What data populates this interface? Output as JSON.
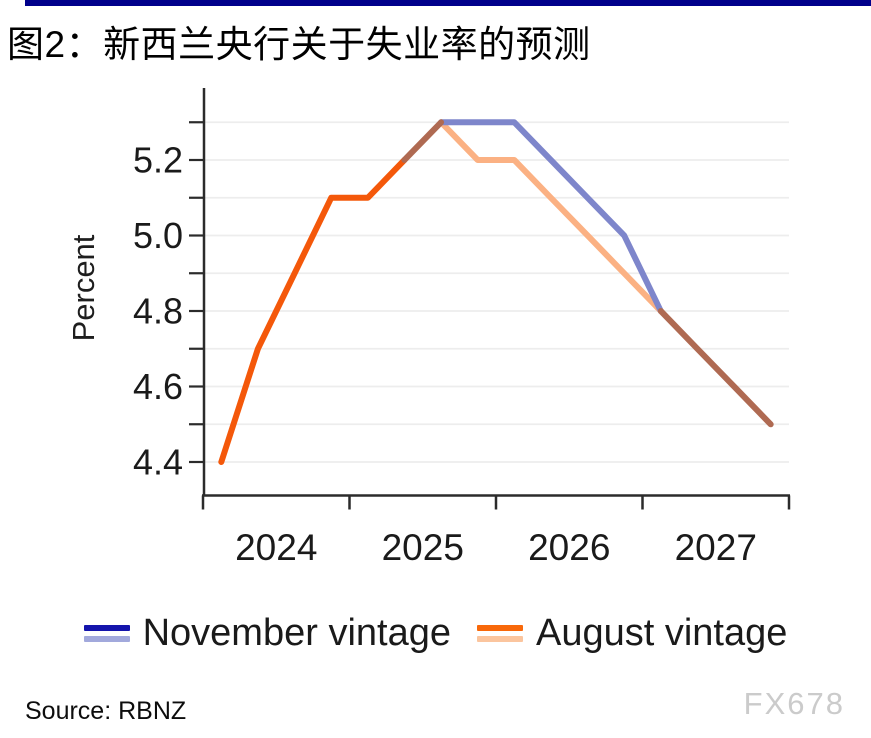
{
  "header": {
    "title": "图2：新西兰央行关于失业率的预测",
    "accent_bar_color": "#00008B"
  },
  "chart_data": {
    "type": "line",
    "title": "图2：新西兰央行关于失业率的预测",
    "ylabel": "Percent",
    "xlabel": "",
    "grid": "horizontal-minor",
    "legend_position": "bottom",
    "y_axis": {
      "min": 4.4,
      "max": 5.3,
      "minor_step": 0.1,
      "label_step": 0.2
    },
    "y_tick_labels": [
      {
        "label": "5.2",
        "value": 5.2
      },
      {
        "label": "5.0",
        "value": 5.0
      },
      {
        "label": "4.8",
        "value": 4.8
      },
      {
        "label": "4.6",
        "value": 4.6
      },
      {
        "label": "4.4",
        "value": 4.4
      }
    ],
    "x_tick_labels": [
      "2024",
      "2025",
      "2026",
      "2027"
    ],
    "categories": [
      "2024Q1",
      "2024Q2",
      "2024Q3",
      "2024Q4",
      "2025Q1",
      "2025Q2",
      "2025Q3",
      "2025Q4",
      "2026Q1",
      "2026Q2",
      "2026Q3",
      "2026Q4",
      "2027Q1",
      "2027Q2",
      "2027Q3",
      "2027Q4"
    ],
    "series": [
      {
        "name": "November vintage",
        "values": [
          null,
          null,
          null,
          null,
          null,
          5.2,
          5.3,
          5.3,
          5.3,
          5.2,
          5.1,
          5.0,
          4.8,
          4.7,
          4.6,
          4.5
        ]
      },
      {
        "name": "August vintage",
        "values": [
          4.4,
          4.7,
          4.9,
          5.1,
          5.1,
          5.2,
          5.3,
          5.2,
          5.2,
          5.1,
          5.0,
          4.9,
          4.8,
          4.7,
          4.6,
          4.5
        ]
      }
    ],
    "colors": {
      "november_forecast": "#7E86CB",
      "august_actual": "#F4580A",
      "august_forecast": "#FBB183",
      "overlap": "#AF6A52",
      "gridline": "#EDEDED",
      "axis": "#2b2b2b",
      "tick_label": "#1a1a1a"
    },
    "render_segments": [
      {
        "color": "august_forecast",
        "points": [
          [
            6,
            5.3
          ],
          [
            7,
            5.2
          ],
          [
            8,
            5.2
          ],
          [
            9,
            5.1
          ],
          [
            10,
            5.0
          ],
          [
            11,
            4.9
          ],
          [
            12,
            4.8
          ]
        ]
      },
      {
        "color": "august_actual",
        "points": [
          [
            0,
            4.4
          ],
          [
            1,
            4.7
          ],
          [
            2,
            4.9
          ],
          [
            3,
            5.1
          ],
          [
            4,
            5.1
          ],
          [
            5,
            5.2
          ]
        ]
      },
      {
        "color": "november_forecast",
        "points": [
          [
            6,
            5.3
          ],
          [
            7,
            5.3
          ],
          [
            8,
            5.3
          ],
          [
            9,
            5.2
          ],
          [
            10,
            5.1
          ],
          [
            11,
            5.0
          ],
          [
            12,
            4.8
          ]
        ]
      },
      {
        "color": "overlap",
        "points": [
          [
            5,
            5.2
          ],
          [
            6,
            5.3
          ]
        ]
      },
      {
        "color": "overlap",
        "points": [
          [
            12,
            4.8
          ],
          [
            13,
            4.7
          ],
          [
            14,
            4.6
          ],
          [
            15,
            4.5
          ]
        ]
      }
    ]
  },
  "legend": {
    "items": [
      {
        "label": "November vintage",
        "swatch_top": "#1414AC",
        "swatch_bottom": "#A2A9DC"
      },
      {
        "label": "August vintage",
        "swatch_top": "#F8680A",
        "swatch_bottom": "#FBC59E"
      }
    ]
  },
  "footer": {
    "source": "Source: RBNZ",
    "watermark": "FX678"
  }
}
